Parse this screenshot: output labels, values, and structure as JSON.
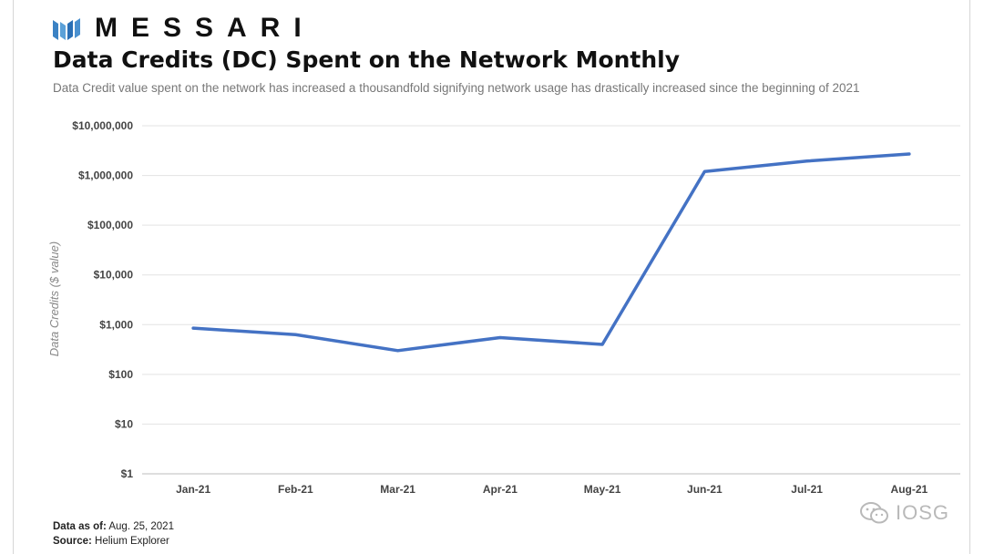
{
  "brand": {
    "name": "MESSARI",
    "logo_icon": "messari-logo-icon"
  },
  "header": {
    "title": "Data Credits (DC) Spent on the Network Monthly",
    "subtitle": "Data Credit value spent  on the network has increased a thousandfold signifying network usage has drastically increased since the beginning of 2021"
  },
  "chart_data": {
    "type": "line",
    "title": "Data Credits (DC) Spent on the Network Monthly",
    "xlabel": "",
    "ylabel": "Data Credits ($ value)",
    "yscale": "log",
    "ylim": [
      1,
      10000000
    ],
    "grid": true,
    "categories": [
      "Jan-21",
      "Feb-21",
      "Mar-21",
      "Apr-21",
      "May-21",
      "Jun-21",
      "Jul-21",
      "Aug-21"
    ],
    "y_ticks": [
      1,
      10,
      100,
      1000,
      10000,
      100000,
      1000000,
      10000000
    ],
    "y_tick_labels": [
      "$1",
      "$10",
      "$100",
      "$1,000",
      "$10,000",
      "$100,000",
      "$1,000,000",
      "$10,000,000"
    ],
    "series": [
      {
        "values": [
          850,
          630,
          300,
          550,
          400,
          1200000,
          1950000,
          2700000
        ],
        "color": "#4472C4"
      }
    ]
  },
  "footer": {
    "data_as_of_label": "Data as of:",
    "data_as_of_value": "Aug. 25, 2021",
    "source_label": "Source:",
    "source_value": "Helium Explorer"
  },
  "watermark": {
    "text": "IOSG",
    "icon": "wechat-icon"
  }
}
